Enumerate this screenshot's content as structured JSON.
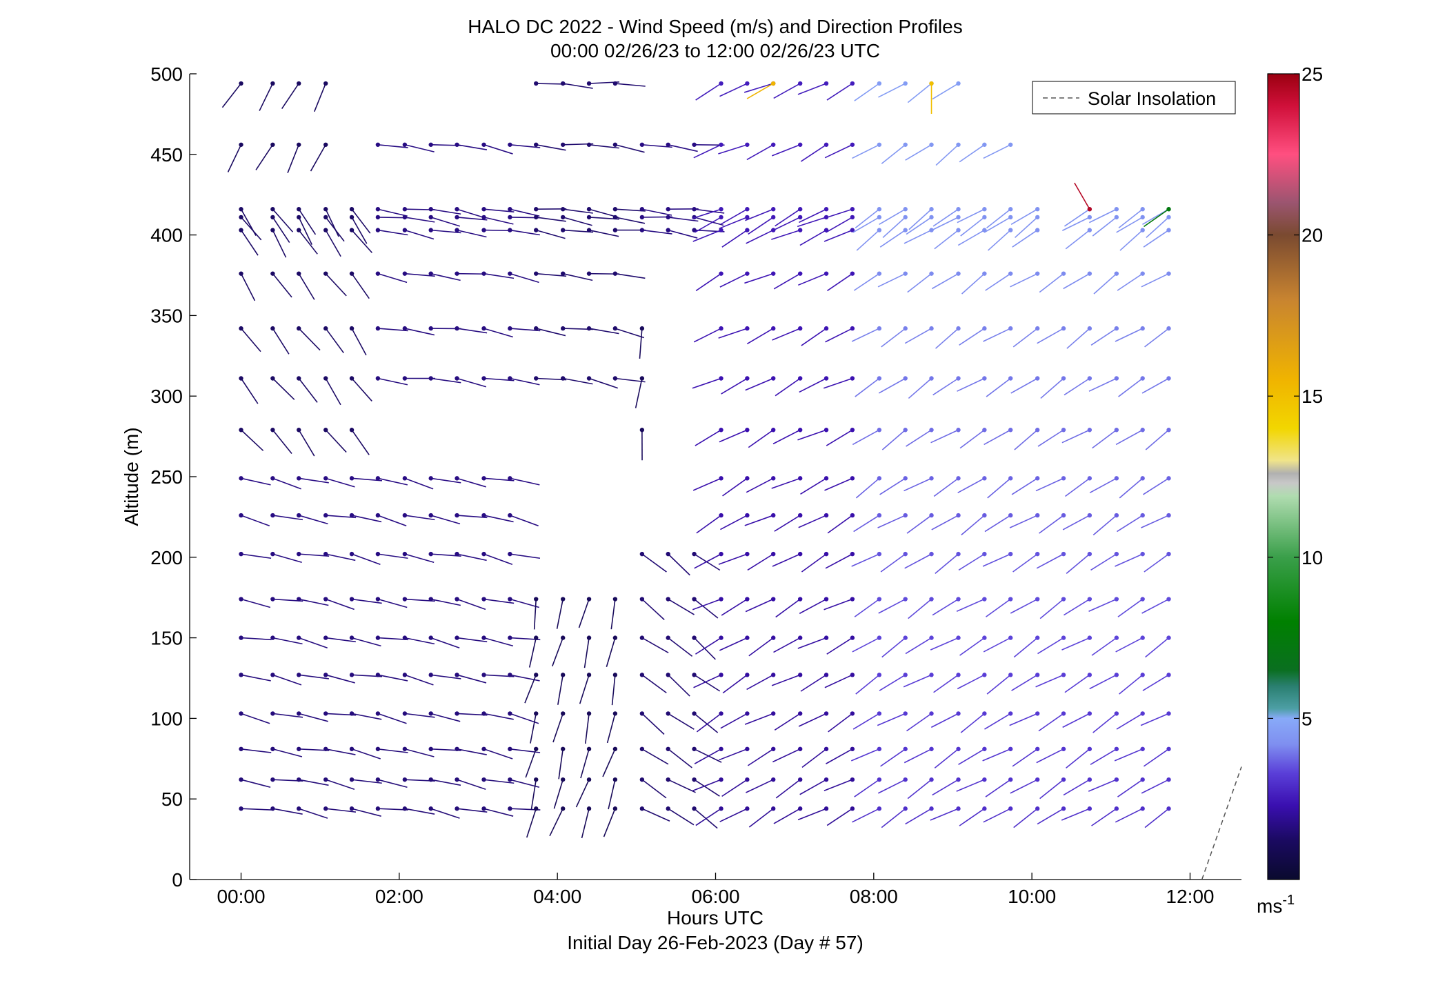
{
  "chart_data": {
    "type": "wind-barb-profile",
    "title": "HALO DC 2022 - Wind Speed (m/s) and Direction Profiles",
    "subtitle": "00:00 02/26/23 to 12:00 02/26/23  UTC",
    "xlabel": "Hours UTC",
    "xlabel2": "Initial Day 26-Feb-2023 (Day # 57)",
    "ylabel": "Altitude (m)",
    "x_ticks": [
      "00:00",
      "02:00",
      "04:00",
      "06:00",
      "08:00",
      "10:00",
      "12:00"
    ],
    "x_tick_hours": [
      0,
      2,
      4,
      6,
      8,
      10,
      12
    ],
    "xlim_hours": [
      -0.65,
      12.65
    ],
    "y_ticks": [
      "0",
      "50",
      "100",
      "150",
      "200",
      "250",
      "300",
      "350",
      "400",
      "450",
      "500"
    ],
    "y_tick_values": [
      0,
      50,
      100,
      150,
      200,
      250,
      300,
      350,
      400,
      450,
      500
    ],
    "ylim": [
      0,
      500
    ],
    "legend": {
      "label": "Solar Insolation",
      "placement": "top-right",
      "style": "dashed",
      "color": "#555555"
    },
    "solar_insolation": {
      "x": [
        12.15,
        12.65
      ],
      "y": [
        0,
        70
      ]
    },
    "colorbar": {
      "ticks": [
        "5",
        "10",
        "15",
        "20",
        "25"
      ],
      "tick_values": [
        5,
        10,
        15,
        20,
        25
      ],
      "range": [
        0,
        25
      ],
      "unit_base": "ms",
      "unit_exp": "-1",
      "stops": [
        {
          "v": 0,
          "c": "#0a0a2e"
        },
        {
          "v": 1.2,
          "c": "#1a0a60"
        },
        {
          "v": 2.3,
          "c": "#3a0fb0"
        },
        {
          "v": 3.3,
          "c": "#5a3fd8"
        },
        {
          "v": 4.2,
          "c": "#7f8ff0"
        },
        {
          "v": 5.0,
          "c": "#88aaf8"
        },
        {
          "v": 5.3,
          "c": "#4d9fa5"
        },
        {
          "v": 6.0,
          "c": "#2a7f70"
        },
        {
          "v": 6.5,
          "c": "#0a6f20"
        },
        {
          "v": 8.0,
          "c": "#008000"
        },
        {
          "v": 10.0,
          "c": "#3a9f4a"
        },
        {
          "v": 11.9,
          "c": "#b0dcb0"
        },
        {
          "v": 12.3,
          "c": "#c8c8c8"
        },
        {
          "v": 12.6,
          "c": "#b0b0b0"
        },
        {
          "v": 13.0,
          "c": "#f0e48a"
        },
        {
          "v": 14.0,
          "c": "#f2d600"
        },
        {
          "v": 15.5,
          "c": "#f0b400"
        },
        {
          "v": 18.0,
          "c": "#c88430"
        },
        {
          "v": 20.0,
          "c": "#7a4a30"
        },
        {
          "v": 21.0,
          "c": "#9b5570"
        },
        {
          "v": 22.5,
          "c": "#ff4f80"
        },
        {
          "v": 24.0,
          "c": "#d0103a"
        },
        {
          "v": 25.0,
          "c": "#9a0010"
        }
      ]
    },
    "times_hours": [
      0.0,
      0.4,
      0.73,
      1.07,
      1.4,
      1.73,
      2.07,
      2.4,
      2.73,
      3.07,
      3.4,
      3.73,
      4.07,
      4.4,
      4.73,
      5.07,
      5.4,
      5.73,
      6.07,
      6.4,
      6.73,
      7.07,
      7.4,
      7.73,
      8.07,
      8.4,
      8.73,
      9.07,
      9.4,
      9.73,
      10.07,
      10.4,
      10.73,
      11.07,
      11.4,
      11.73
    ],
    "levels_m": [
      44,
      62,
      81,
      103,
      127,
      150,
      174,
      202,
      226,
      249,
      279,
      311,
      342,
      376,
      403,
      411,
      416,
      456,
      494
    ],
    "series": [
      {
        "t0": 0.0,
        "t1": 11.73,
        "a0": 0,
        "a1": 0,
        "alt0": 0,
        "alt1": 500,
        "d": [
          155,
          155
        ],
        "s": [
          1.4,
          1.4
        ],
        "p": 0.0
      },
      {
        "t0": 0.0,
        "t1": 3.6,
        "a0": 40,
        "a1": 260,
        "alt0": 0,
        "alt1": 500,
        "d": [
          100,
          105
        ],
        "s": [
          1.5,
          1.9
        ],
        "p": 1.0
      },
      {
        "t0": 0.0,
        "t1": 1.6,
        "a0": 270,
        "a1": 420,
        "alt0": 0,
        "alt1": 500,
        "d": [
          130,
          150
        ],
        "s": [
          1.2,
          1.3
        ],
        "p": 1.0
      },
      {
        "t0": 0.0,
        "t1": 1.2,
        "a0": 430,
        "a1": 500,
        "alt0": 0,
        "alt1": 500,
        "d": [
          205,
          210
        ],
        "s": [
          1.1,
          1.2
        ],
        "p": 1.0
      },
      {
        "t0": 1.7,
        "t1": 3.5,
        "a0": 280,
        "a1": 460,
        "alt0": 0,
        "alt1": 500,
        "d": [
          95,
          100
        ],
        "s": [
          1.5,
          1.7
        ],
        "p": 1.0
      },
      {
        "t0": 3.7,
        "t1": 4.8,
        "a0": 40,
        "a1": 200,
        "alt0": 0,
        "alt1": 500,
        "d": [
          200,
          175
        ],
        "s": [
          1.0,
          1.2
        ],
        "p": 1.0
      },
      {
        "t0": 3.5,
        "t1": 4.8,
        "a0": 280,
        "a1": 500,
        "alt0": 0,
        "alt1": 500,
        "d": [
          110,
          95
        ],
        "s": [
          1.3,
          1.4
        ],
        "p": 1.0
      },
      {
        "t0": 5.0,
        "t1": 6.0,
        "a0": 40,
        "a1": 220,
        "alt0": 0,
        "alt1": 500,
        "d": [
          120,
          145
        ],
        "s": [
          1.4,
          1.6
        ],
        "p": 1.0
      },
      {
        "t0": 5.0,
        "t1": 5.2,
        "a0": 270,
        "a1": 360,
        "alt0": 0,
        "alt1": 500,
        "d": [
          185,
          190
        ],
        "s": [
          1.1,
          1.1
        ],
        "p": 1.0
      },
      {
        "t0": 5.0,
        "t1": 6.2,
        "a0": 400,
        "a1": 500,
        "alt0": 0,
        "alt1": 500,
        "d": [
          85,
          100
        ],
        "s": [
          1.5,
          1.7
        ],
        "p": 1.0
      },
      {
        "t0": 6.0,
        "t1": 11.73,
        "a0": 0,
        "a1": 500,
        "alt0": 0,
        "alt1": 500,
        "d": [
          240,
          245
        ],
        "s": [
          1.9,
          2.6
        ],
        "p": 1.0
      },
      {
        "t0": 8.0,
        "t1": 11.73,
        "a0": 0,
        "a1": 500,
        "alt0": 0,
        "alt1": 500,
        "d": [
          240,
          235
        ],
        "s": [
          2.8,
          4.6
        ],
        "p": 1.0
      }
    ],
    "gaps": [
      {
        "t0": 1.7,
        "t1": 3.6,
        "a0": 480,
        "a1": 500
      },
      {
        "t0": 3.5,
        "t1": 3.7,
        "a0": 440,
        "a1": 470
      },
      {
        "t0": 4.9,
        "t1": 5.8,
        "a0": 480,
        "a1": 500
      },
      {
        "t0": 9.2,
        "t1": 11.8,
        "a0": 470,
        "a1": 500
      },
      {
        "t0": 9.9,
        "t1": 11.8,
        "a0": 430,
        "a1": 470
      },
      {
        "t0": 10.2,
        "t1": 10.6,
        "a0": 400,
        "a1": 420
      },
      {
        "t0": 10.9,
        "t1": 11.3,
        "a0": 400,
        "a1": 410
      }
    ],
    "specials": [
      {
        "t": 6.73,
        "alt": 494,
        "dir": 240,
        "speed": 15.5
      },
      {
        "t": 8.73,
        "alt": 494,
        "dir": 180,
        "speed": 15.0
      },
      {
        "t": 10.73,
        "alt": 416,
        "dir": 330,
        "speed": 24.5
      },
      {
        "t": 11.73,
        "alt": 416,
        "dir": 235,
        "speed": 7.5
      }
    ],
    "barb_length_px": 44
  }
}
